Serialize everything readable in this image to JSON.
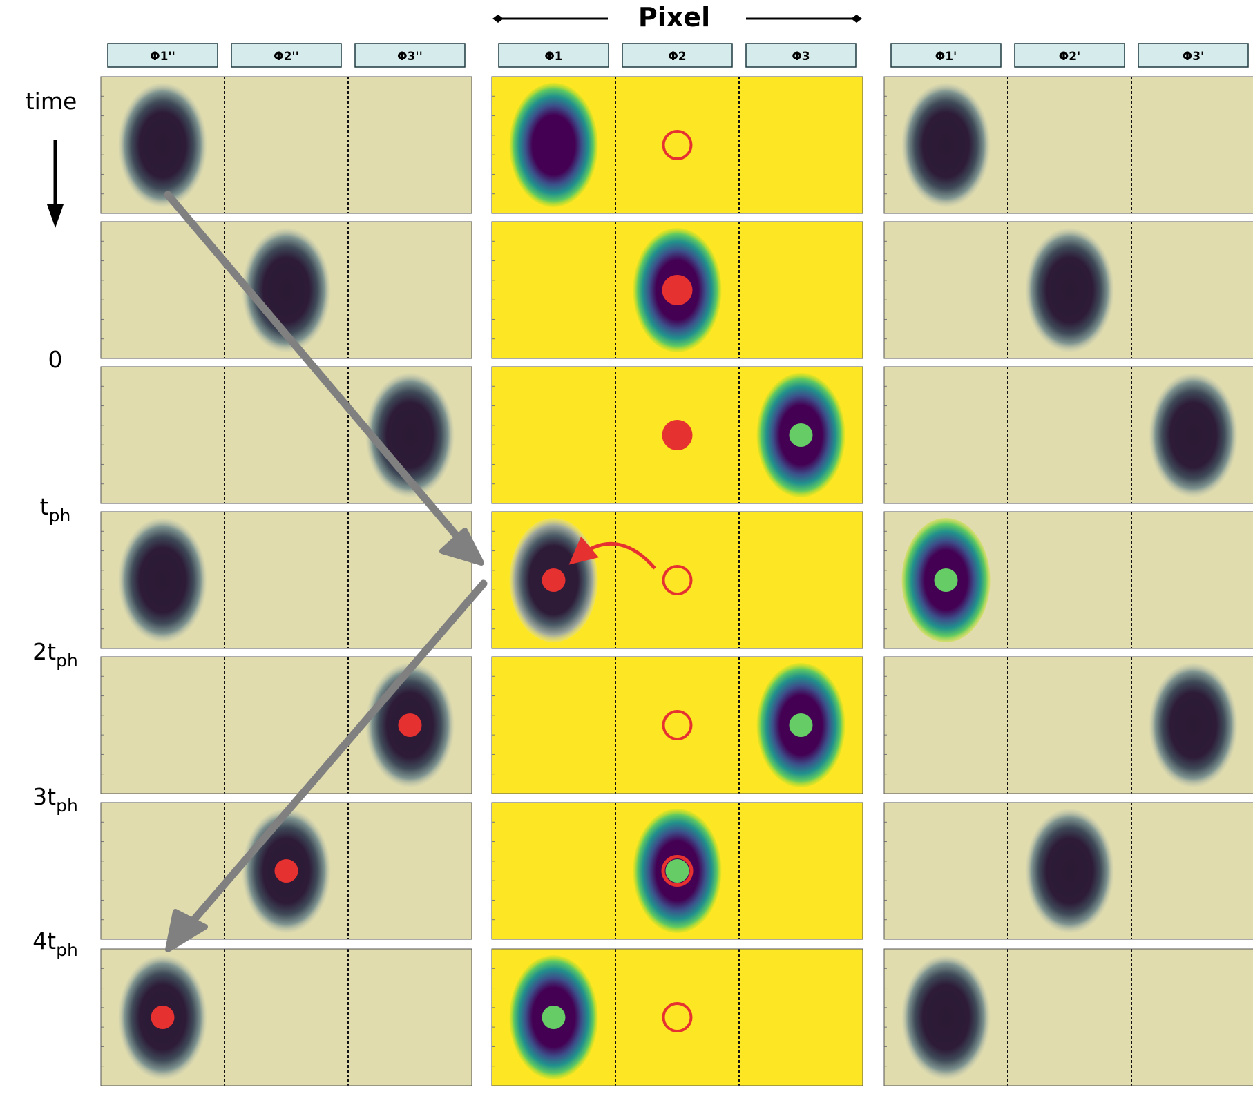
{
  "header": {
    "title": "Pixel"
  },
  "time_axis": {
    "heading": "time",
    "labels": [
      {
        "base": "0",
        "sub": ""
      },
      {
        "base": "t",
        "sub": "ph"
      },
      {
        "base": "2t",
        "sub": "ph"
      },
      {
        "base": "3t",
        "sub": "ph"
      },
      {
        "base": "4t",
        "sub": "ph"
      }
    ]
  },
  "pixels": [
    {
      "phases": [
        "Φ1''",
        "Φ2''",
        "Φ3''"
      ],
      "theme": "previous"
    },
    {
      "phases": [
        "Φ1",
        "Φ2",
        "Φ3"
      ],
      "theme": "current"
    },
    {
      "phases": [
        "Φ1'",
        "Φ2'",
        "Φ3'"
      ],
      "theme": "next"
    }
  ],
  "rows": [
    {
      "charge": [
        0,
        0,
        0
      ],
      "red": [
        null,
        null,
        null
      ],
      "green": [
        null,
        null,
        null
      ],
      "ring": 1
    },
    {
      "charge": [
        1,
        1,
        1
      ],
      "red": [
        null,
        1,
        null
      ],
      "green": [
        null,
        null,
        null
      ],
      "ring": null
    },
    {
      "charge": [
        2,
        2,
        2
      ],
      "red": [
        null,
        1,
        null
      ],
      "green": [
        null,
        2,
        null
      ],
      "ring": null
    },
    {
      "charge": [
        0,
        0,
        0
      ],
      "red": [
        null,
        0,
        null
      ],
      "green": [
        null,
        null,
        0
      ],
      "ring": 1,
      "hop": true
    },
    {
      "charge": [
        2,
        2,
        2
      ],
      "red": [
        2,
        null,
        null
      ],
      "green": [
        null,
        2,
        null
      ],
      "ring": 1
    },
    {
      "charge": [
        1,
        1,
        1
      ],
      "red": [
        1,
        null,
        null
      ],
      "green": [
        null,
        1,
        null
      ],
      "ring": 1
    },
    {
      "charge": [
        0,
        0,
        0
      ],
      "red": [
        0,
        null,
        null
      ],
      "green": [
        null,
        0,
        null
      ],
      "ring": 1
    }
  ],
  "colors": {
    "dim_background": "#e0dcad",
    "bright_background": "#fde725",
    "dim_core": "#2d1b38",
    "charge_core": "#440154",
    "charge_edge": "#21918c",
    "phase_box_fill": "#d6ecec",
    "red_marker": "#e63131",
    "green_marker": "#66cc66",
    "arrow": "#808080"
  }
}
